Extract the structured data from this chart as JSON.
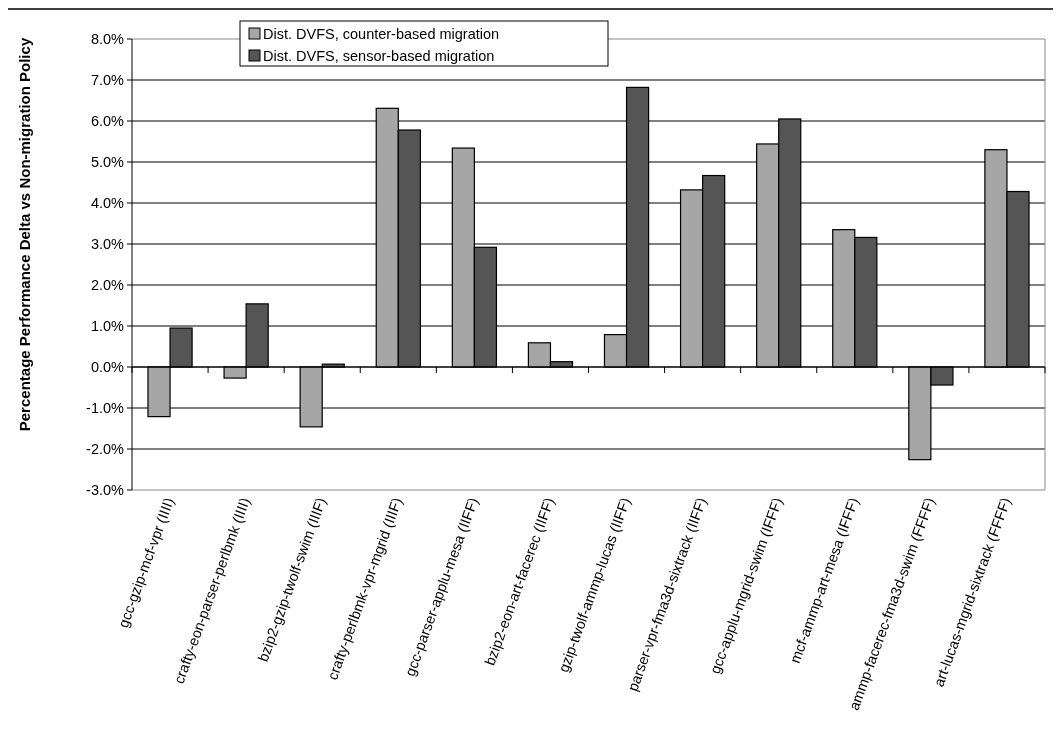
{
  "chart_data": {
    "type": "bar",
    "ylabel": "Percentage Performance Delta vs Non-migration Policy",
    "categories": [
      "gcc-gzip-mcf-vpr (IIII)",
      "crafty-eon-parser-perlbmk (IIII)",
      "bzip2-gzip-twolf-swim (IIIF)",
      "crafty-perlbmk-vpr-mgrid (IIIF)",
      "gcc-parser-applu-mesa (IIFF)",
      "bzip2-eon-art-facerec (IIFF)",
      "gzip-twolf-ammp-lucas (IIFF)",
      "parser-vpr-fma3d-sixtrack (IIFF)",
      "gcc-applu-mgrid-swim (IFFF)",
      "mcf-ammp-art-mesa (IFFF)",
      "ammp-facerec-fma3d-swim (FFFF)",
      "art-lucas-mgrid-sixtrack (FFFF)"
    ],
    "series": [
      {
        "name": "Dist. DVFS, counter-based migration",
        "color": "#a6a6a6",
        "values": [
          -1.21,
          -0.27,
          -1.46,
          6.31,
          5.34,
          0.59,
          0.79,
          4.32,
          5.44,
          3.35,
          -2.26,
          5.3
        ]
      },
      {
        "name": "Dist. DVFS, sensor-based migration",
        "color": "#555555",
        "values": [
          0.95,
          1.54,
          0.07,
          5.78,
          2.92,
          0.13,
          6.82,
          4.67,
          6.05,
          3.16,
          -0.44,
          4.28
        ]
      }
    ],
    "ylim": [
      -3,
      8
    ],
    "yticks": [
      {
        "value": -3,
        "label": "-3.0%"
      },
      {
        "value": -2,
        "label": "-2.0%"
      },
      {
        "value": -1,
        "label": "-1.0%"
      },
      {
        "value": 0,
        "label": "0.0%"
      },
      {
        "value": 1,
        "label": "1.0%"
      },
      {
        "value": 2,
        "label": "2.0%"
      },
      {
        "value": 3,
        "label": "3.0%"
      },
      {
        "value": 4,
        "label": "4.0%"
      },
      {
        "value": 5,
        "label": "5.0%"
      },
      {
        "value": 6,
        "label": "6.0%"
      },
      {
        "value": 7,
        "label": "7.0%"
      },
      {
        "value": 8,
        "label": "8.0%"
      }
    ],
    "grid": "y",
    "legend": "top"
  }
}
